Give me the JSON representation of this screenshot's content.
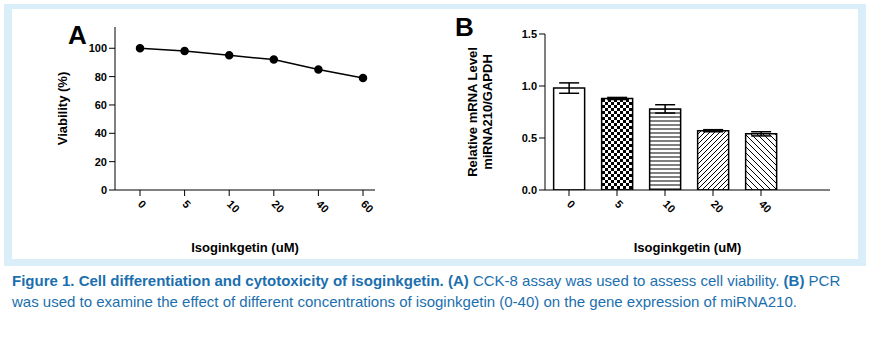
{
  "chart_data": [
    {
      "panel": "A",
      "type": "line",
      "categories": [
        "0",
        "5",
        "10",
        "20",
        "40",
        "60"
      ],
      "values": [
        100,
        98,
        95,
        92,
        85,
        79
      ],
      "color": "#000000",
      "marker": "circle",
      "xlabel": "Isoginkgetin (uM)",
      "ylabel": "Viability (%)",
      "ylim": [
        0,
        115
      ],
      "yticks": [
        0,
        20,
        40,
        60,
        80,
        100
      ],
      "grid": false
    },
    {
      "panel": "B",
      "type": "bar",
      "categories": [
        "0",
        "5",
        "10",
        "20",
        "40"
      ],
      "values": [
        0.98,
        0.88,
        0.78,
        0.57,
        0.54
      ],
      "errors": [
        0.05,
        0.01,
        0.04,
        0.01,
        0.02
      ],
      "color": "#000000",
      "xlabel": "Isoginkgetin (uM)",
      "ylabel": [
        "Relative mRNA Level",
        "miRNA210/GAPDH"
      ],
      "ylim": [
        0,
        1.5
      ],
      "yticks": [
        {
          "value": 0,
          "label": "0.0"
        },
        {
          "value": 0.5,
          "label": "0.5"
        },
        {
          "value": 1,
          "label": "1.0"
        },
        {
          "value": 1.5,
          "label": "1.5"
        }
      ],
      "grid": false
    }
  ],
  "caption": {
    "title": "Figure 1. Cell differentiation and cytotoxicity of isoginkgetin.",
    "items": [
      {
        "label": "(A)",
        "text": "CCK-8 assay was used to assess cell viability."
      },
      {
        "label": "(B)",
        "text": "PCR was used to examine the effect of different concentrations of isoginkgetin (0-40) on the gene expression of miRNA210."
      }
    ]
  }
}
